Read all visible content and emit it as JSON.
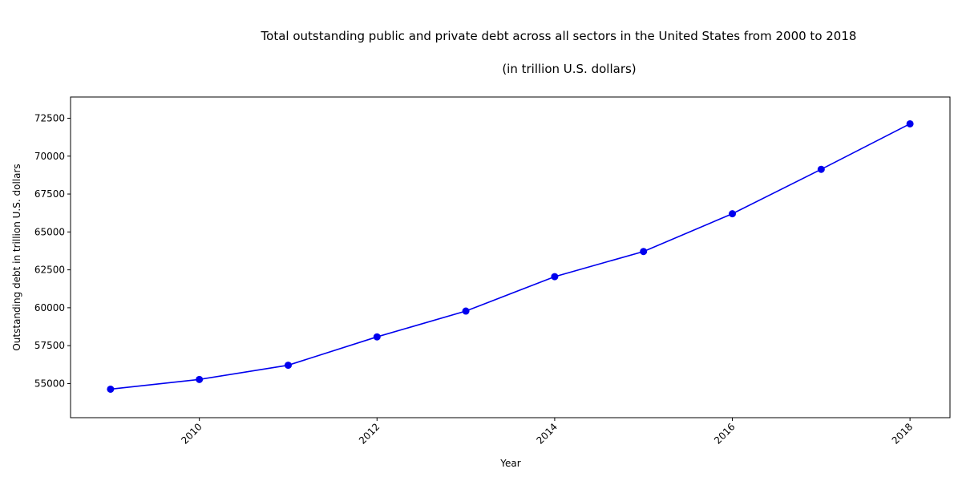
{
  "chart_data": {
    "type": "line",
    "title": "Total outstanding public and private debt across all sectors in the United States from 2000 to 2018",
    "subtitle": "(in trillion U.S. dollars)",
    "xlabel": "Year",
    "ylabel": "Outstanding debt in trillion U.S. dollars",
    "x": [
      2009,
      2010,
      2011,
      2012,
      2013,
      2014,
      2015,
      2016,
      2017,
      2018
    ],
    "series": [
      {
        "values": [
          54630,
          55270,
          56210,
          58080,
          59780,
          62050,
          63710,
          66200,
          69130,
          72130
        ],
        "color": "#0000ee"
      }
    ],
    "xlim": [
      2008.55,
      2018.45
    ],
    "ylim": [
      52750,
      73900
    ],
    "x_ticks": [
      2010,
      2012,
      2014,
      2016,
      2018
    ],
    "y_ticks": [
      55000,
      57500,
      60000,
      62500,
      65000,
      67500,
      70000,
      72500
    ],
    "grid": false,
    "legend": "none"
  }
}
